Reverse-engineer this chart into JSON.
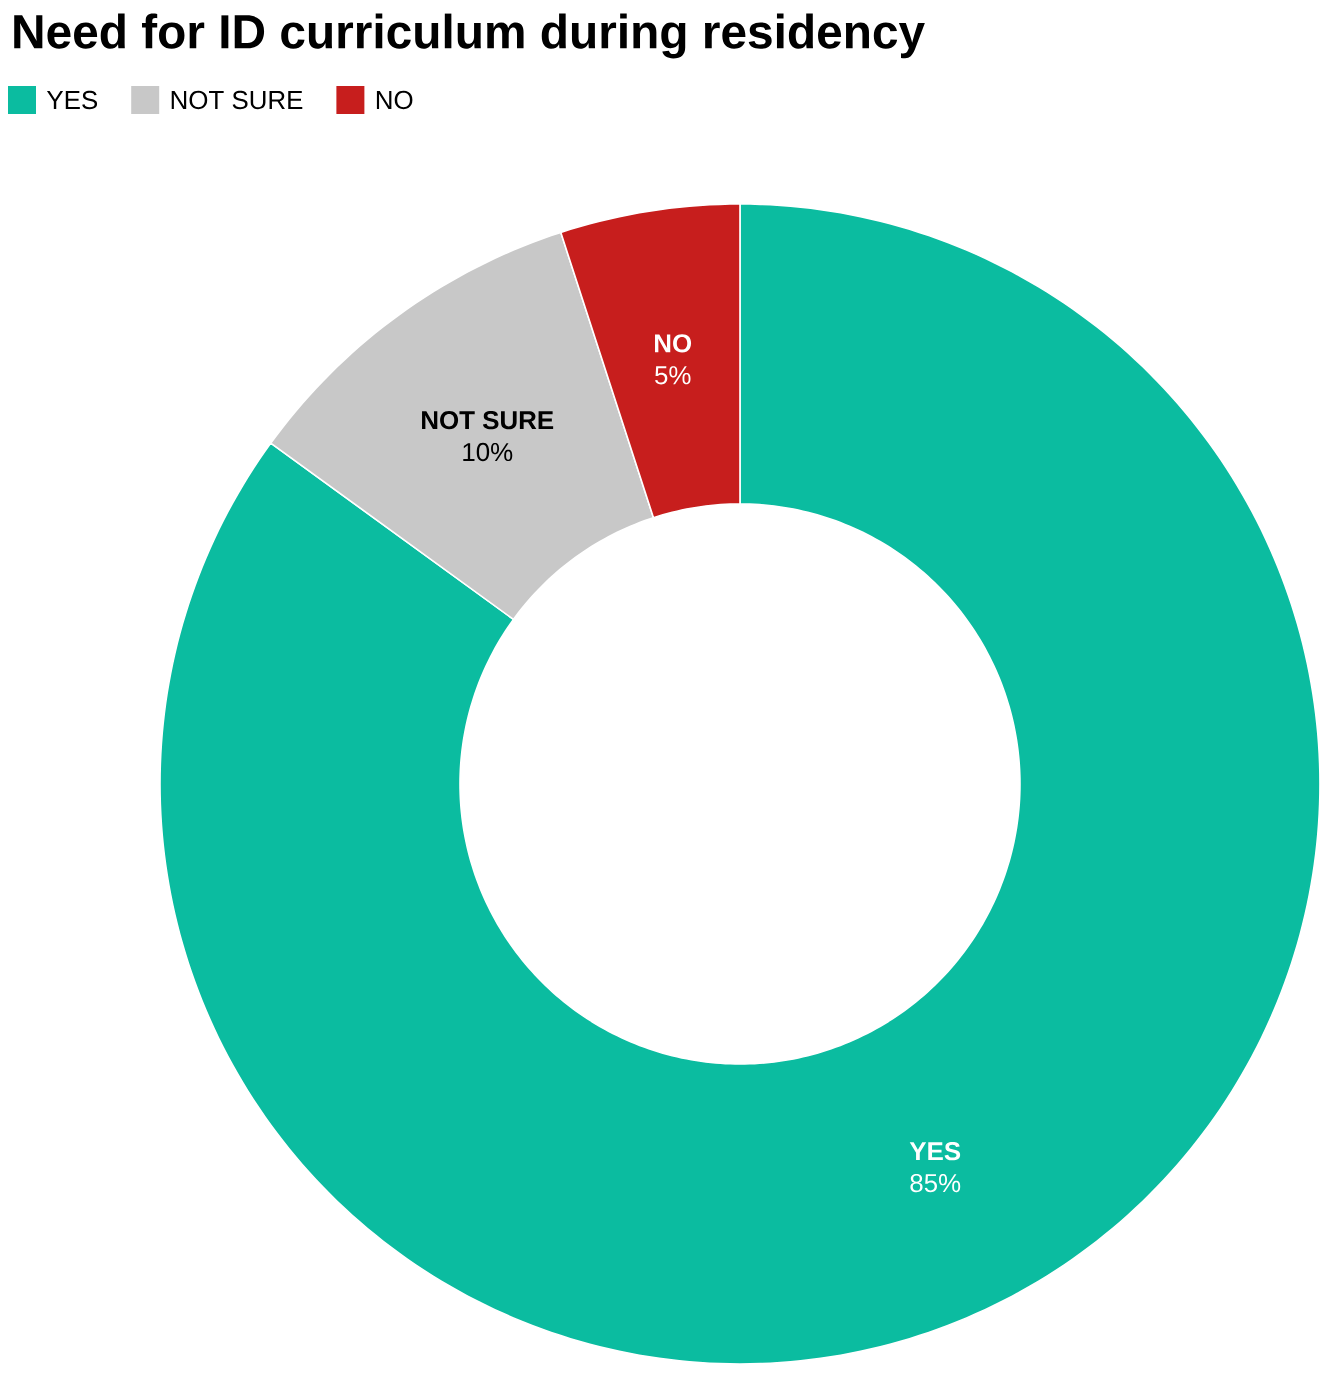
{
  "chart_data": {
    "type": "donut",
    "title": "Need for ID curriculum during residency",
    "categories": [
      "YES",
      "NOT SURE",
      "NO"
    ],
    "values": [
      85,
      10,
      5
    ],
    "colors": [
      "#0bbca0",
      "#c8c8c8",
      "#c71e1d"
    ],
    "value_labels": [
      "85%",
      "10%",
      "5%"
    ],
    "legend": "top left"
  }
}
